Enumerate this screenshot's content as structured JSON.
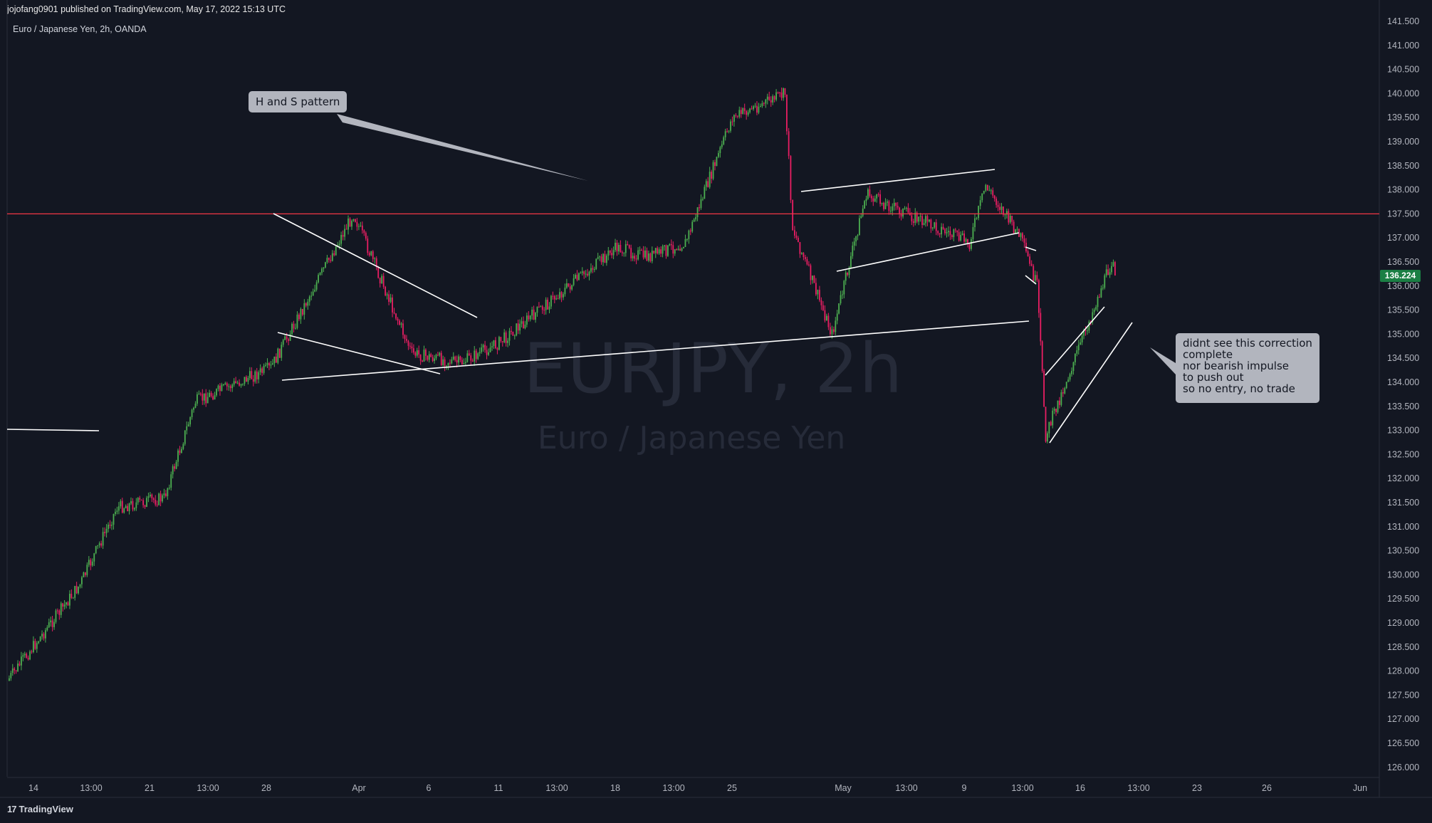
{
  "header": {
    "publisher": "jojofang0901 published on TradingView.com, May 17, 2022 15:13 UTC",
    "symbol": "Euro / Japanese Yen, 2h, OANDA"
  },
  "watermark": {
    "ticker": "EURJPY, 2h",
    "name": "Euro / Japanese Yen"
  },
  "footer": {
    "logo_text": "TradingView",
    "logo_mark": "17"
  },
  "annotations": {
    "note1": "H and S pattern",
    "note2_lines": [
      "didnt see this correction",
      "complete",
      "nor bearish impulse",
      "to push out",
      "so no entry, no trade"
    ]
  },
  "colors": {
    "background": "#131722",
    "up": "#26a69a",
    "up_candle": "#4caf50",
    "down_candle": "#e91e63",
    "horizontal_line": "#f23645",
    "trendline": "#ffffff",
    "note_bg": "#b2b5be"
  },
  "chart_data": {
    "type": "candlestick",
    "title": "Euro / Japanese Yen, 2h, OANDA",
    "y_axis_labels": [
      "141.500",
      "141.000",
      "140.500",
      "140.000",
      "139.500",
      "139.000",
      "138.500",
      "138.000",
      "137.500",
      "137.000",
      "136.500",
      "136.000",
      "135.500",
      "135.000",
      "134.500",
      "134.000",
      "133.500",
      "133.000",
      "132.500",
      "132.000",
      "131.500",
      "131.000",
      "130.500",
      "130.000",
      "129.500",
      "129.000",
      "128.500",
      "128.000",
      "127.500",
      "127.000",
      "126.500",
      "126.000"
    ],
    "x_axis_labels": [
      "14",
      "13:00",
      "21",
      "13:00",
      "28",
      "Apr",
      "6",
      "11",
      "13:00",
      "18",
      "13:00",
      "25",
      "May",
      "13:00",
      "9",
      "13:00",
      "16",
      "13:00",
      "23",
      "26",
      "Jun"
    ],
    "last_price": "136.224",
    "horizontal_level": 137.5,
    "price_path": [
      {
        "date": "Mar 14",
        "price": 127.8
      },
      {
        "date": "Mar 16",
        "price": 129.8
      },
      {
        "date": "Mar 18",
        "price": 131.4
      },
      {
        "date": "Mar 22",
        "price": 131.6
      },
      {
        "date": "Mar 23",
        "price": 133.6
      },
      {
        "date": "Mar 25",
        "price": 134.3
      },
      {
        "date": "Mar 28",
        "price": 137.5
      },
      {
        "date": "Mar 31",
        "price": 134.6
      },
      {
        "date": "Apr 4",
        "price": 134.4
      },
      {
        "date": "Apr 8",
        "price": 134.8
      },
      {
        "date": "Apr 11",
        "price": 136.8
      },
      {
        "date": "Apr 14",
        "price": 136.6
      },
      {
        "date": "Apr 18",
        "price": 136.9
      },
      {
        "date": "Apr 20",
        "price": 139.5
      },
      {
        "date": "Apr 21",
        "price": 140.0
      },
      {
        "date": "Apr 25",
        "price": 137.2
      },
      {
        "date": "Apr 28",
        "price": 135.0
      },
      {
        "date": "Apr 29",
        "price": 137.9
      },
      {
        "date": "May 4",
        "price": 136.9
      },
      {
        "date": "May 9",
        "price": 138.1
      },
      {
        "date": "May 12",
        "price": 137.0
      },
      {
        "date": "May 13",
        "price": 136.0
      },
      {
        "date": "May 13",
        "price": 132.9
      },
      {
        "date": "May 17",
        "price": 136.6
      },
      {
        "date": "May 17",
        "price": 136.224
      }
    ]
  }
}
